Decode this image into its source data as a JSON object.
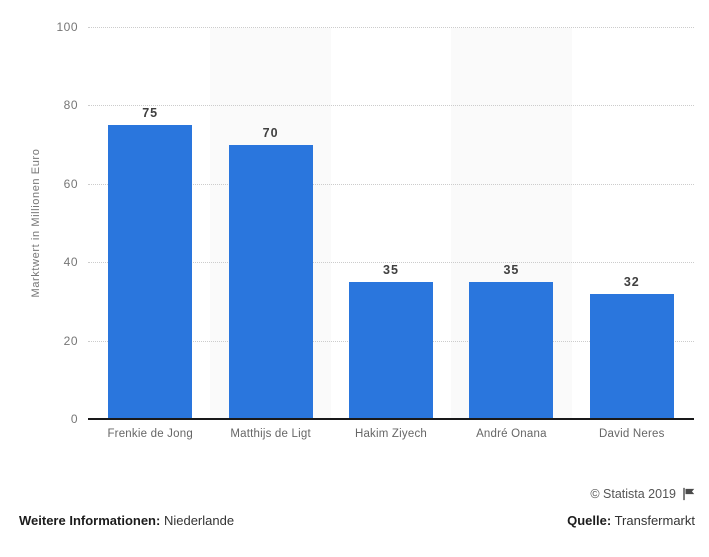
{
  "chart_data": {
    "type": "bar",
    "categories": [
      "Frenkie de Jong",
      "Matthijs de Ligt",
      "Hakim Ziyech",
      "André Onana",
      "David Neres"
    ],
    "values": [
      75,
      70,
      35,
      35,
      32
    ],
    "title": "",
    "xlabel": "",
    "ylabel": "Marktwert in Millionen Euro",
    "ylim": [
      0,
      100
    ],
    "yticks": [
      0,
      20,
      40,
      60,
      80,
      100
    ],
    "grid": "horizontal-dotted",
    "legend": "none",
    "bar_color": "#2a76dd",
    "stripe_color": "#fafafa",
    "gridline_color": "#cccccc",
    "axis_color": "#19191a"
  },
  "footer": {
    "copyright": "© Statista 2019",
    "flag_icon": "flag-icon",
    "info_label": "Weitere Informationen:",
    "info_value": "Niederlande",
    "source_label": "Quelle:",
    "source_value": "Transfermarkt"
  }
}
